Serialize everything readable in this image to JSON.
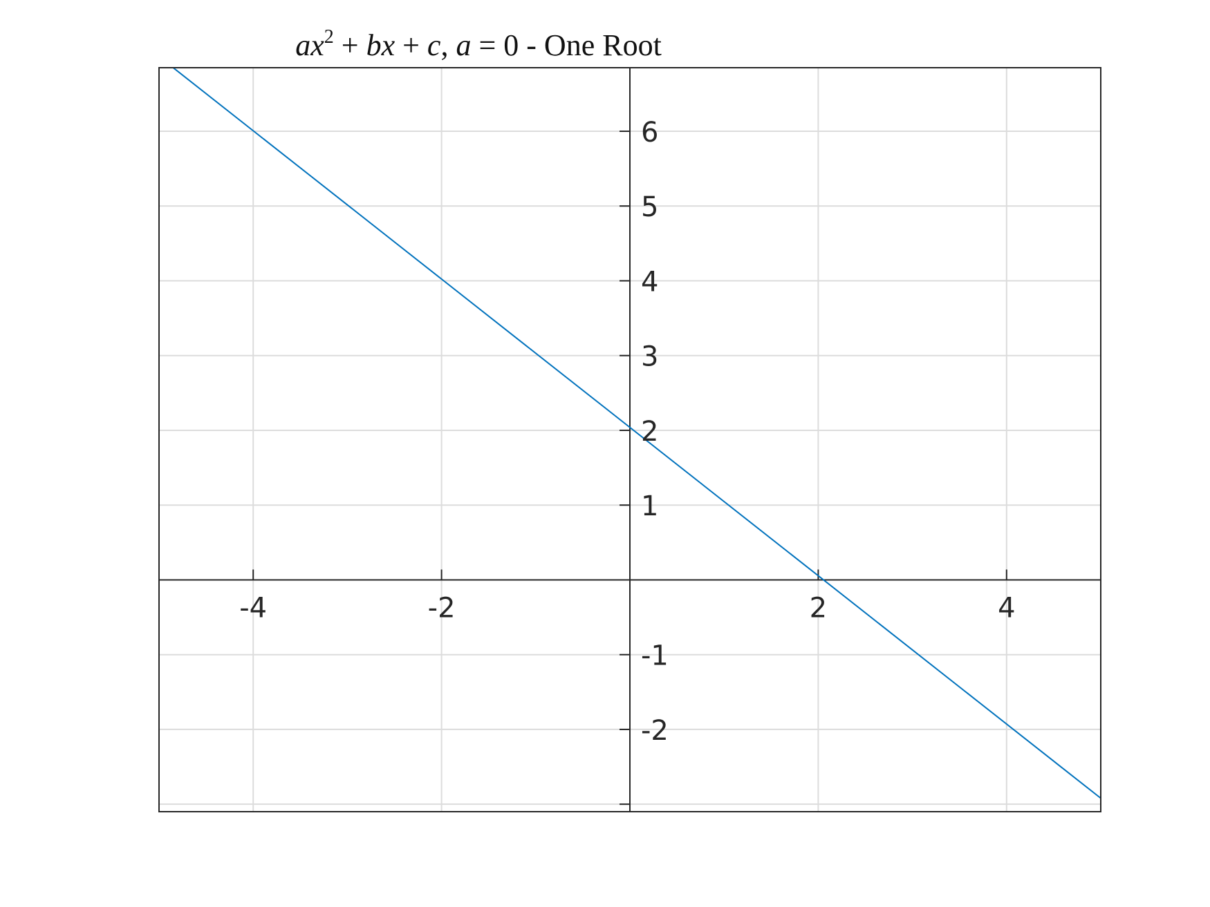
{
  "chart_data": {
    "type": "line",
    "title": {
      "part1": "ax",
      "sup": "2",
      "part2": " + ",
      "part3": "bx",
      "part4": " + ",
      "part5": "c",
      "part6": ",  ",
      "part7": "a",
      "part8": " = 0 - One Root"
    },
    "xlabel": "",
    "ylabel": "",
    "xlim": [
      -5,
      5
    ],
    "ylim": [
      -3.1,
      6.85
    ],
    "xticks": [
      -4,
      -2,
      2,
      4
    ],
    "xtick_labels": [
      "-4",
      "-2",
      "2",
      "4"
    ],
    "yticks": [
      -2,
      -1,
      1,
      2,
      3,
      4,
      5,
      6
    ],
    "ytick_labels": [
      "-2",
      "-1",
      "1",
      "2",
      "3",
      "4",
      "5",
      "6"
    ],
    "grid_x": [
      -4,
      -2,
      0,
      2,
      4
    ],
    "grid_y": [
      -3,
      -2,
      -1,
      1,
      2,
      3,
      4,
      5,
      6
    ],
    "extra_ytick_marks": [
      -3
    ],
    "grid": true,
    "series": [
      {
        "color": "#0072BD",
        "x": [
          -4.85,
          5
        ],
        "y": [
          6.85,
          -2.92
        ]
      }
    ]
  }
}
